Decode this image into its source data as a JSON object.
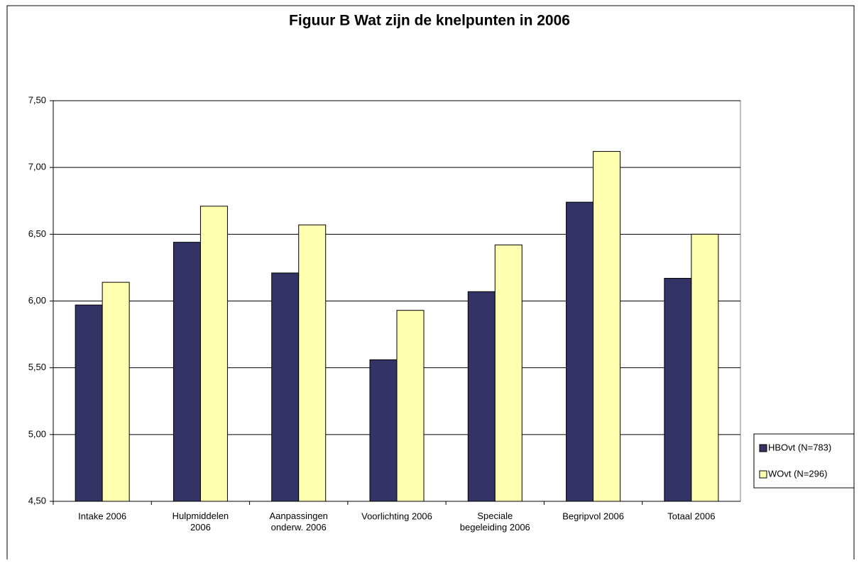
{
  "chart_data": {
    "type": "bar",
    "title": "Figuur B Wat zijn de knelpunten in 2006",
    "categories": [
      "Intake 2006",
      "Hulpmiddelen\n2006",
      "Aanpassingen\nonderw. 2006",
      "Voorlichting 2006",
      "Speciale\nbegeleiding 2006",
      "Begripvol 2006",
      "Totaal 2006"
    ],
    "series": [
      {
        "name": "HBOvt (N=783)",
        "color": "#333366",
        "values": [
          5.97,
          6.44,
          6.21,
          5.56,
          6.07,
          6.74,
          6.17
        ]
      },
      {
        "name": "WOvt (N=296)",
        "color": "#ffffb0",
        "values": [
          6.14,
          6.71,
          6.57,
          5.93,
          6.42,
          7.12,
          6.5
        ]
      }
    ],
    "ylim": [
      4.5,
      7.5
    ],
    "yticks": [
      {
        "value": 4.5,
        "label": "4,50"
      },
      {
        "value": 5,
        "label": "5,00"
      },
      {
        "value": 5.5,
        "label": "5,50"
      },
      {
        "value": 6,
        "label": "6,00"
      },
      {
        "value": 6.5,
        "label": "6,50"
      },
      {
        "value": 7,
        "label": "7,00"
      },
      {
        "value": 7.5,
        "label": "7,50"
      }
    ],
    "grid": true,
    "legend": "right"
  }
}
